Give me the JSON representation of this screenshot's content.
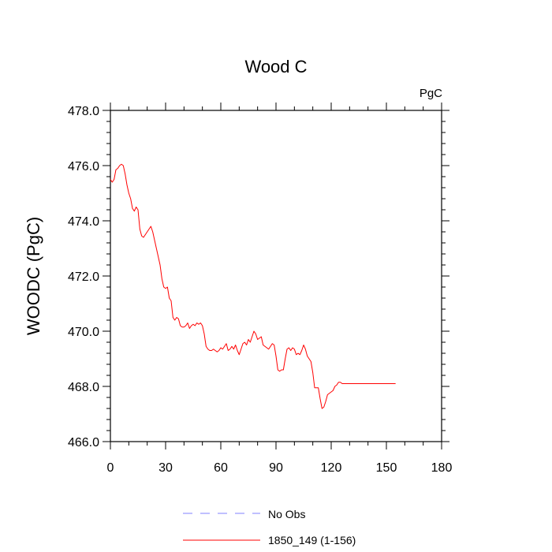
{
  "chart_data": {
    "type": "line",
    "title": "Wood C",
    "units_label": "PgC",
    "ylabel": "WOODC  (PgC)",
    "xlabel": "",
    "xlim": [
      0,
      180
    ],
    "ylim": [
      466,
      478
    ],
    "x_ticks": [
      0,
      30,
      60,
      90,
      120,
      150,
      180
    ],
    "y_ticks": [
      466,
      468,
      470,
      472,
      474,
      476,
      478
    ],
    "x_tick_labels": [
      "0",
      "30",
      "60",
      "90",
      "120",
      "150",
      "180"
    ],
    "y_tick_labels": [
      "466.0",
      "468.0",
      "470.0",
      "472.0",
      "474.0",
      "476.0",
      "478.0"
    ],
    "grid": false,
    "legend_position": "bottom",
    "legend": [
      {
        "name": "No Obs",
        "color": "#8080ff",
        "dash": "dashed"
      },
      {
        "name": "1850_149 (1-156)",
        "color": "#ff0000",
        "dash": "solid"
      }
    ],
    "series": [
      {
        "name": "1850_149 (1-156)",
        "color": "#ff0000",
        "x": [
          0,
          1,
          2,
          3,
          4,
          5,
          6,
          7,
          8,
          9,
          10,
          11,
          12,
          13,
          14,
          15,
          16,
          17,
          18,
          19,
          20,
          21,
          22,
          23,
          24,
          25,
          26,
          27,
          28,
          29,
          30,
          31,
          32,
          33,
          34,
          35,
          36,
          37,
          38,
          39,
          40,
          41,
          42,
          43,
          44,
          45,
          46,
          47,
          48,
          49,
          50,
          51,
          52,
          53,
          54,
          55,
          56,
          57,
          58,
          59,
          60,
          61,
          62,
          63,
          64,
          65,
          66,
          67,
          68,
          69,
          70,
          71,
          72,
          73,
          74,
          75,
          76,
          77,
          78,
          79,
          80,
          81,
          82,
          83,
          84,
          85,
          86,
          87,
          88,
          89,
          90,
          91,
          92,
          93,
          94,
          95,
          96,
          97,
          98,
          99,
          100,
          101,
          102,
          103,
          104,
          105,
          106,
          107,
          108,
          109,
          110,
          111,
          112,
          113,
          114,
          115,
          116,
          117,
          118,
          119,
          120,
          121,
          122,
          123,
          124,
          125,
          126,
          127,
          128,
          129,
          130,
          131,
          132,
          133,
          134,
          135,
          136,
          137,
          138,
          139,
          140,
          141,
          142,
          143,
          144,
          145,
          146,
          147,
          148,
          149,
          150,
          151,
          152,
          153,
          154,
          155
        ],
        "y": [
          475.5,
          475.4,
          475.5,
          475.85,
          475.9,
          476.0,
          476.05,
          476.0,
          475.7,
          475.3,
          475.0,
          474.8,
          474.45,
          474.35,
          474.5,
          474.4,
          473.7,
          473.45,
          473.4,
          473.5,
          473.6,
          473.7,
          473.8,
          473.6,
          473.3,
          473.0,
          472.7,
          472.4,
          471.9,
          471.6,
          471.55,
          471.6,
          471.2,
          471.1,
          470.5,
          470.4,
          470.5,
          470.45,
          470.2,
          470.15,
          470.15,
          470.2,
          470.3,
          470.1,
          470.2,
          470.25,
          470.2,
          470.3,
          470.25,
          470.3,
          470.2,
          469.9,
          469.45,
          469.35,
          469.3,
          469.3,
          469.35,
          469.3,
          469.25,
          469.3,
          469.4,
          469.35,
          469.45,
          469.55,
          469.3,
          469.35,
          469.45,
          469.35,
          469.5,
          469.3,
          469.15,
          469.35,
          469.55,
          469.6,
          469.5,
          469.7,
          469.6,
          469.8,
          470.0,
          469.9,
          469.7,
          469.75,
          469.8,
          469.5,
          469.45,
          469.4,
          469.35,
          469.45,
          469.55,
          469.5,
          469.1,
          468.6,
          468.55,
          468.6,
          468.6,
          469.0,
          469.35,
          469.4,
          469.3,
          469.4,
          469.35,
          469.15,
          469.2,
          469.15,
          469.3,
          469.5,
          469.35,
          469.1,
          469.0,
          468.9,
          468.5,
          467.95,
          467.95,
          467.95,
          467.55,
          467.2,
          467.25,
          467.45,
          467.7,
          467.75,
          467.8,
          467.85,
          468.0,
          468.05,
          468.15,
          468.15,
          468.1,
          468.1,
          468.1,
          468.1,
          468.1,
          468.1,
          468.1,
          468.1,
          468.1,
          468.1,
          468.1,
          468.1,
          468.1,
          468.1,
          468.1,
          468.1,
          468.1,
          468.1,
          468.1,
          468.1,
          468.1,
          468.1,
          468.1,
          468.1,
          468.1,
          468.1,
          468.1,
          468.1,
          468.1,
          468.1
        ]
      }
    ]
  }
}
